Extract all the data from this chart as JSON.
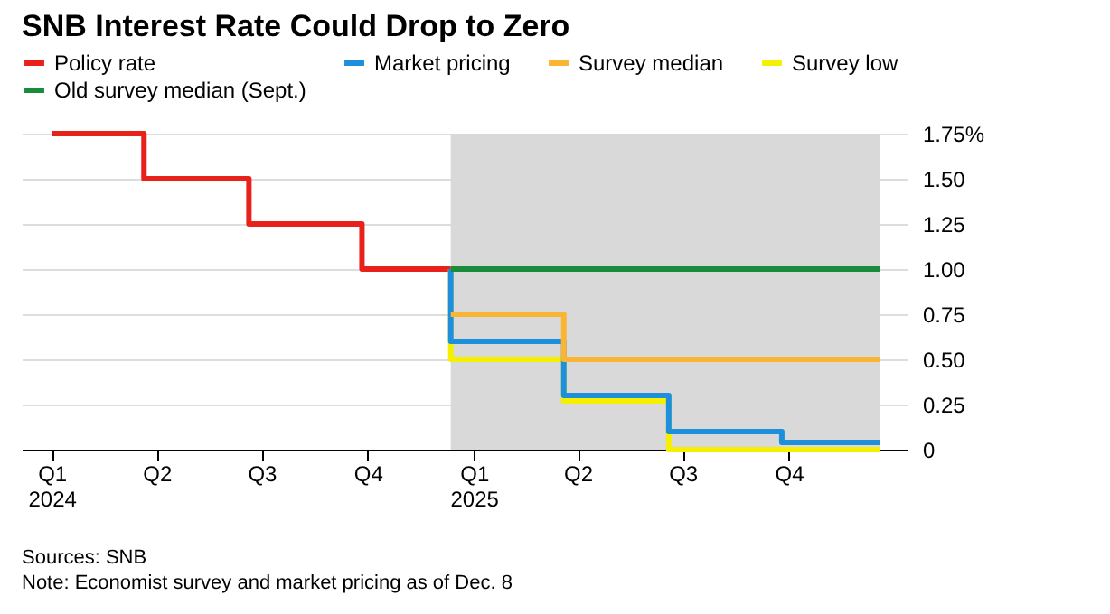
{
  "chart_data": {
    "type": "step",
    "title": "SNB Interest Rate Could Drop to Zero",
    "series": [
      {
        "name": "Policy rate",
        "color": "#e8221b",
        "x": [
          "2024-01-01",
          "2024-03-21",
          "2024-06-20",
          "2024-09-26",
          "2024-12-12"
        ],
        "values": [
          1.75,
          1.5,
          1.25,
          1.0,
          1.0
        ]
      },
      {
        "name": "Market pricing",
        "color": "#1d8fdb",
        "x": [
          "2024-12-12",
          "2024-12-12",
          "2025-03-20",
          "2025-06-19",
          "2025-09-25",
          "2025-12-19"
        ],
        "values": [
          1.0,
          0.6,
          0.3,
          0.1,
          0.04,
          0.04
        ]
      },
      {
        "name": "Survey median",
        "color": "#fbb535",
        "x": [
          "2024-12-12",
          "2025-03-20",
          "2025-12-19"
        ],
        "values": [
          0.75,
          0.5,
          0.5
        ]
      },
      {
        "name": "Survey low",
        "color": "#f5f000",
        "x": [
          "2024-12-12",
          "2024-12-12",
          "2025-03-20",
          "2025-06-19",
          "2025-12-19"
        ],
        "values": [
          1.0,
          0.5,
          0.27,
          0.0,
          0.0
        ]
      },
      {
        "name": "Old survey median (Sept.)",
        "color": "#1a8a3c",
        "x": [
          "2024-12-12",
          "2025-12-19"
        ],
        "values": [
          1.0,
          1.0
        ]
      }
    ],
    "xlim": [
      "2023-12-06",
      "2026-01-12"
    ],
    "xticks": [
      {
        "value": "2024-01-01",
        "label": "Q1\n2024"
      },
      {
        "value": "2024-04-01",
        "label": "Q2"
      },
      {
        "value": "2024-07-01",
        "label": "Q3"
      },
      {
        "value": "2024-10-01",
        "label": "Q4"
      },
      {
        "value": "2025-01-01",
        "label": "Q1\n2025"
      },
      {
        "value": "2025-04-01",
        "label": "Q2"
      },
      {
        "value": "2025-07-01",
        "label": "Q3"
      },
      {
        "value": "2025-10-01",
        "label": "Q4"
      }
    ],
    "ylim": [
      0,
      1.75
    ],
    "yticks": [
      0,
      0.25,
      {
        "value": 0.5,
        "label": "0.50"
      },
      0.75,
      {
        "value": 1.0,
        "label": "1.00"
      },
      1.25,
      {
        "value": 1.5,
        "label": "1.50"
      },
      {
        "value": 1.75,
        "label": "1.75%"
      }
    ],
    "bands": [
      {
        "axis": "x",
        "from": "2024-12-12",
        "to": "2025-12-19",
        "color": "#d9d9d9"
      }
    ],
    "grid": "y",
    "legend": "top",
    "marker": "none",
    "line_style": "solid",
    "annotations": [
      "Sources: SNB",
      "Note: Economist survey and market pricing as of Dec. 8"
    ]
  }
}
